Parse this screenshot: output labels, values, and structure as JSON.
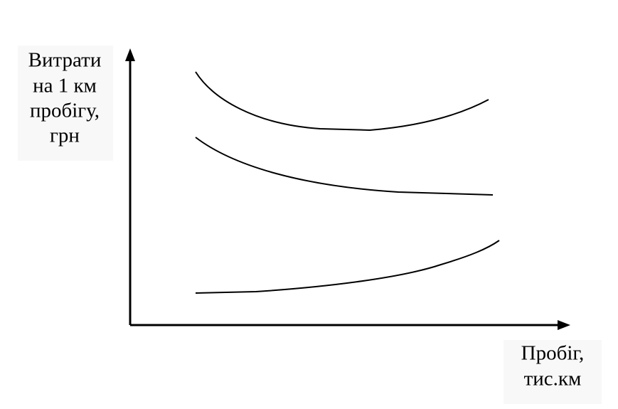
{
  "y_axis_label": {
    "lines": [
      "Витрати",
      "на 1 км",
      "пробігу,",
      "грн"
    ]
  },
  "x_axis_label": {
    "lines": [
      "Пробіг,",
      "тис.км"
    ]
  }
}
